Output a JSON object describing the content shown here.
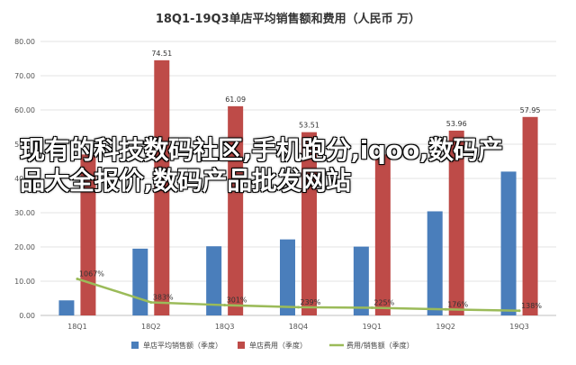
{
  "chart_data": {
    "type": "bar",
    "title": "18Q1-19Q3单店平均销售额和费用（人民币 万）",
    "categories": [
      "18Q1",
      "18Q2",
      "18Q3",
      "18Q4",
      "19Q1",
      "19Q2",
      "19Q3"
    ],
    "ylim": [
      0,
      80
    ],
    "yticks": [
      "0.00",
      "10.00",
      "20.00",
      "30.00",
      "40.00",
      "50.00",
      "60.00",
      "70.00",
      "80.00"
    ],
    "grid": true,
    "legend_position": "bottom",
    "series": [
      {
        "name": "单店平均销售额（季度）",
        "kind": "bar",
        "color": "#4a7ebb",
        "values": [
          4.4,
          19.5,
          20.2,
          22.2,
          20.1,
          30.4,
          42.0
        ]
      },
      {
        "name": "单店费用（季度）",
        "kind": "bar",
        "color": "#be4b48",
        "values": [
          47.0,
          74.51,
          61.09,
          53.51,
          47.0,
          53.96,
          57.95
        ],
        "labels": [
          "",
          "74.51",
          "61.09",
          "53.51",
          "",
          "53.96",
          "57.95"
        ]
      },
      {
        "name": "费用/销售额（季度）",
        "kind": "line",
        "color": "#9bbb59",
        "values": [
          10.67,
          3.83,
          3.01,
          2.39,
          2.25,
          1.76,
          1.38
        ],
        "labels": [
          "1067%",
          "383%",
          "301%",
          "239%",
          "225%",
          "176%",
          "138%"
        ]
      }
    ]
  },
  "overlay_text": "现有的科技数码社区,手机跑分,iqoo,数码产品大全报价,数码产品批发网站"
}
